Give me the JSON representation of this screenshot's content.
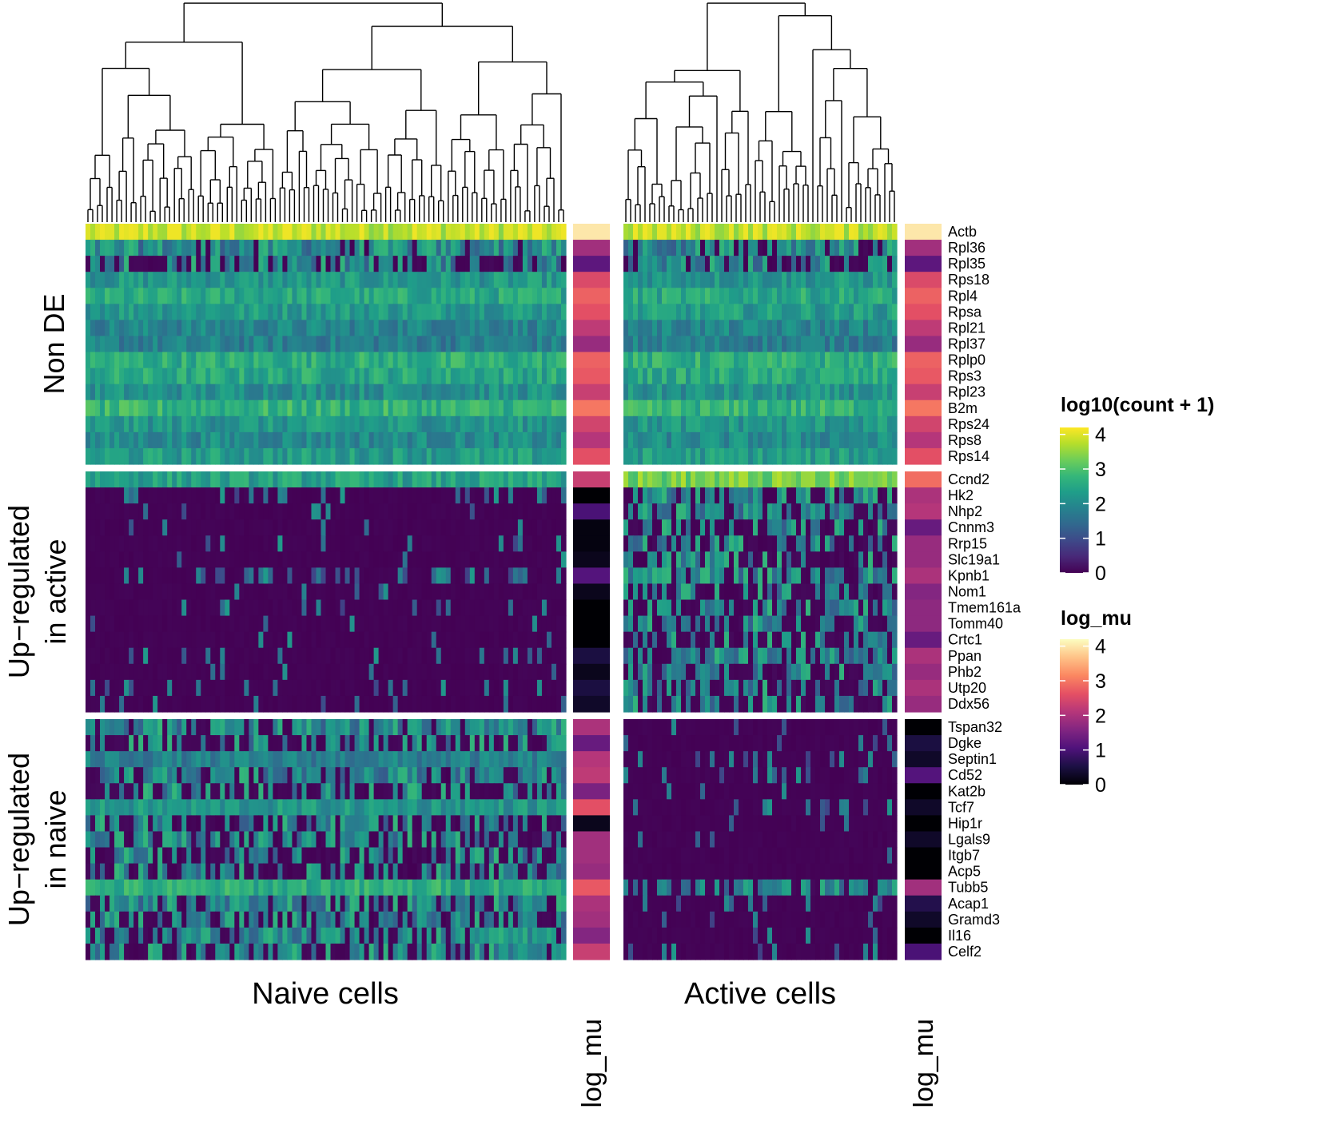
{
  "chart_data": {
    "type": "heatmap",
    "column_groups": [
      {
        "name": "Naive cells",
        "n_cells": 100
      },
      {
        "name": "Active cells",
        "n_cells": 57
      }
    ],
    "mu_column_label": "log_mu",
    "row_groups": [
      {
        "name": "Non DE",
        "genes": [
          "Actb",
          "Rpl36",
          "Rpl35",
          "Rps18",
          "Rpl4",
          "Rpsa",
          "Rpl21",
          "Rpl37",
          "Rplp0",
          "Rps3",
          "Rpl23",
          "B2m",
          "Rps24",
          "Rps8",
          "Rps14"
        ],
        "mean_naive": [
          3.85,
          1.6,
          1.3,
          2.2,
          2.5,
          2.3,
          1.9,
          1.8,
          2.6,
          2.5,
          2.1,
          2.7,
          2.2,
          2.0,
          2.3
        ],
        "mean_active": [
          3.85,
          1.6,
          1.3,
          2.2,
          2.5,
          2.3,
          1.9,
          1.8,
          2.6,
          2.5,
          2.1,
          2.7,
          2.2,
          2.0,
          2.3
        ],
        "log_mu_naive": [
          4.0,
          1.9,
          1.2,
          2.5,
          2.8,
          2.6,
          2.2,
          1.8,
          2.8,
          2.7,
          2.3,
          3.0,
          2.4,
          2.1,
          2.6
        ],
        "log_mu_active": [
          4.0,
          1.9,
          1.2,
          2.5,
          2.8,
          2.6,
          2.2,
          1.8,
          2.8,
          2.7,
          2.3,
          3.0,
          2.4,
          2.1,
          2.6
        ]
      },
      {
        "name": "Up−regulated in active",
        "genes": [
          "Ccnd2",
          "Hk2",
          "Nhp2",
          "Cnnm3",
          "Rrp15",
          "Slc19a1",
          "Kpnb1",
          "Nom1",
          "Tmem161a",
          "Tomm40",
          "Crtc1",
          "Ppan",
          "Phb2",
          "Utp20",
          "Ddx56"
        ],
        "mean_naive": [
          2.4,
          0.15,
          0.12,
          0.05,
          0.08,
          0.05,
          0.3,
          0.05,
          0.08,
          0.05,
          0.05,
          0.12,
          0.08,
          0.15,
          0.1
        ],
        "mean_active": [
          3.3,
          1.2,
          1.6,
          0.9,
          1.0,
          0.8,
          1.3,
          0.9,
          1.0,
          0.8,
          0.9,
          1.4,
          1.1,
          1.2,
          1.0
        ],
        "log_mu_naive": [
          2.3,
          0.0,
          1.0,
          0.1,
          0.1,
          0.2,
          1.1,
          0.2,
          0.0,
          0.0,
          0.0,
          0.5,
          0.2,
          0.5,
          0.3
        ],
        "log_mu_active": [
          2.9,
          2.0,
          2.1,
          1.3,
          1.8,
          1.8,
          2.0,
          1.6,
          1.7,
          1.7,
          1.3,
          2.0,
          1.8,
          2.0,
          1.8
        ]
      },
      {
        "name": "Up−regulated in naive",
        "genes": [
          "Tspan32",
          "Dgke",
          "Septin1",
          "Cd52",
          "Kat2b",
          "Tcf7",
          "Hip1r",
          "Lgals9",
          "Itgb7",
          "Acp5",
          "Tubb5",
          "Acap1",
          "Gramd3",
          "Il16",
          "Celf2"
        ],
        "mean_naive": [
          1.6,
          0.9,
          1.8,
          1.6,
          0.8,
          2.2,
          1.1,
          0.9,
          0.9,
          1.0,
          2.6,
          1.4,
          1.2,
          1.5,
          1.1
        ],
        "mean_active": [
          0.1,
          0.15,
          0.2,
          0.25,
          0.05,
          0.2,
          0.05,
          0.05,
          0.02,
          0.02,
          1.3,
          0.1,
          0.05,
          0.1,
          0.15
        ],
        "log_mu_naive": [
          2.0,
          1.3,
          2.1,
          2.2,
          1.5,
          2.6,
          0.2,
          1.9,
          1.9,
          1.8,
          2.7,
          2.0,
          1.9,
          1.6,
          2.3
        ],
        "log_mu_active": [
          0.0,
          0.5,
          0.3,
          1.1,
          0.0,
          0.3,
          0.0,
          0.3,
          0.0,
          0.0,
          1.9,
          0.6,
          0.3,
          0.0,
          1.0
        ]
      }
    ],
    "legends": [
      {
        "title": "log10(count + 1)",
        "palette": "viridis",
        "ticks": [
          4,
          3,
          2,
          1,
          0
        ],
        "range": [
          0,
          4.2
        ]
      },
      {
        "title": "log_mu",
        "palette": "magma",
        "ticks": [
          4,
          3,
          2,
          1,
          0
        ],
        "range": [
          0,
          4.2
        ]
      }
    ],
    "dendrograms": [
      "column dendrogram over Naive cells",
      "column dendrogram over Active cells"
    ]
  },
  "colors": {
    "viridis": [
      "#440154",
      "#482878",
      "#3e4989",
      "#31688e",
      "#26828e",
      "#1f9e89",
      "#35b779",
      "#6ece58",
      "#b5de2b",
      "#fde725"
    ],
    "magma": [
      "#000004",
      "#1c1044",
      "#4f127b",
      "#812581",
      "#b5367a",
      "#e55064",
      "#fb8761",
      "#fec287",
      "#fcfdbf"
    ],
    "background": "#ffffff",
    "dendrogram_stroke": "#000000"
  }
}
